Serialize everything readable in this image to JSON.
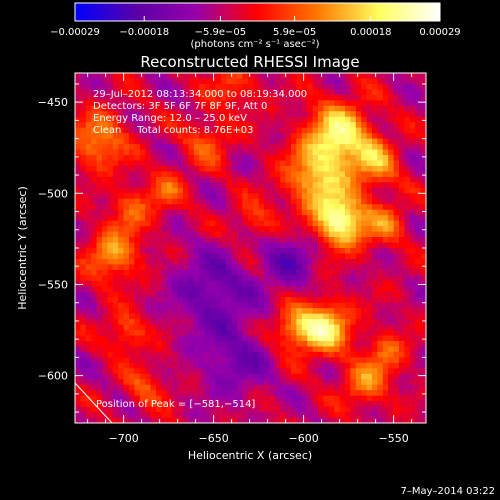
{
  "colorbar": {
    "tick_labels": [
      "−0.00029",
      "−0.00018",
      "−5.9e−05",
      "5.9e−05",
      "0.00018",
      "0.00029"
    ],
    "tick_values": [
      -0.00029,
      -0.00018,
      -5.9e-05,
      5.9e-05,
      0.00018,
      0.00029
    ],
    "range": [
      -0.00029,
      0.00029
    ],
    "unit_label": "(photons cm⁻² s⁻¹ asec⁻²)",
    "colors": [
      "#0000ff",
      "#5a00a8",
      "#9900aa",
      "#ff0000",
      "#ff7a00",
      "#ffff60",
      "#ffffff"
    ]
  },
  "chart_data": {
    "type": "heatmap",
    "title": "Reconstructed RHESSI Image",
    "xlabel": "Heliocentric X (arcsec)",
    "ylabel": "Heliocentric Y (arcsec)",
    "xlim": [
      -727,
      -532
    ],
    "ylim": [
      -626,
      -434
    ],
    "x_ticks": [
      -700,
      -650,
      -600,
      -550
    ],
    "y_ticks": [
      -450,
      -500,
      -550,
      -600
    ],
    "x_tick_labels": [
      "−700",
      "−650",
      "−600",
      "−550"
    ],
    "y_tick_labels": [
      "−450",
      "−500",
      "−550",
      "−600"
    ],
    "value_range": [
      -0.00029,
      0.00029
    ],
    "sources": [
      {
        "x": -582,
        "y": -468,
        "peak": 0.00026,
        "sigma": 13
      },
      {
        "x": -581,
        "y": -514,
        "peak": 0.00029,
        "sigma": 10
      },
      {
        "x": -595,
        "y": -492,
        "peak": 0.00018,
        "sigma": 12
      },
      {
        "x": -561,
        "y": -483,
        "peak": 0.00014,
        "sigma": 9
      },
      {
        "x": -556,
        "y": -515,
        "peak": 0.00012,
        "sigma": 8
      },
      {
        "x": -590,
        "y": -572,
        "peak": 0.00025,
        "sigma": 10
      },
      {
        "x": -607,
        "y": -573,
        "peak": 0.00016,
        "sigma": 8
      },
      {
        "x": -567,
        "y": -603,
        "peak": 0.00015,
        "sigma": 9
      },
      {
        "x": -555,
        "y": -585,
        "peak": 0.00011,
        "sigma": 8
      },
      {
        "x": -715,
        "y": -470,
        "peak": 0.00016,
        "sigma": 11
      },
      {
        "x": -707,
        "y": -532,
        "peak": 0.00017,
        "sigma": 10
      },
      {
        "x": -697,
        "y": -507,
        "peak": 0.00011,
        "sigma": 8
      },
      {
        "x": -678,
        "y": -497,
        "peak": 0.0001,
        "sigma": 8
      },
      {
        "x": -655,
        "y": -470,
        "peak": 0.00011,
        "sigma": 9
      },
      {
        "x": -640,
        "y": -440,
        "peak": 0.0001,
        "sigma": 9
      },
      {
        "x": -628,
        "y": -515,
        "peak": 0.0001,
        "sigma": 8
      },
      {
        "x": -700,
        "y": -575,
        "peak": 0.00012,
        "sigma": 8
      },
      {
        "x": -690,
        "y": -605,
        "peak": 0.0001,
        "sigma": 8
      },
      {
        "x": -652,
        "y": -552,
        "peak": -0.00012,
        "sigma": 15
      },
      {
        "x": -640,
        "y": -590,
        "peak": -0.0001,
        "sigma": 14
      },
      {
        "x": -610,
        "y": -535,
        "peak": -0.0001,
        "sigma": 12
      }
    ],
    "annotations": [
      "29–Jul–2012 08:13:34.000 to 08:19:34.000",
      "Detectors: 3F 5F 6F 7F 8F 9F, Att 0",
      "Energy Range: 12.0 – 25.0 keV",
      "Clean     Total counts: 8.76E+03"
    ],
    "peak_label": "Position of Peak = [−581,−514]",
    "peak_position": [
      -581,
      -514
    ]
  },
  "footer_date": "7–May–2014 03:22"
}
